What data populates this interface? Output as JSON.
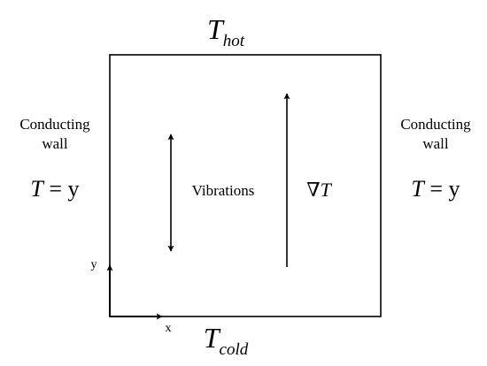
{
  "top_label": {
    "symbol": "T",
    "subscript": "hot"
  },
  "bottom_label": {
    "symbol": "T",
    "subscript": "cold"
  },
  "left_wall": {
    "lines": [
      "Conducting",
      "wall"
    ],
    "equation": {
      "symbol": "T",
      "rest": "= y"
    }
  },
  "right_wall": {
    "lines": [
      "Conducting",
      "wall"
    ],
    "equation": {
      "symbol": "T",
      "rest": "= y"
    }
  },
  "vibrations": "Vibrations",
  "gradient": {
    "nabla": "∇",
    "symbol": "T"
  },
  "axes": {
    "x": "x",
    "y": "y"
  }
}
